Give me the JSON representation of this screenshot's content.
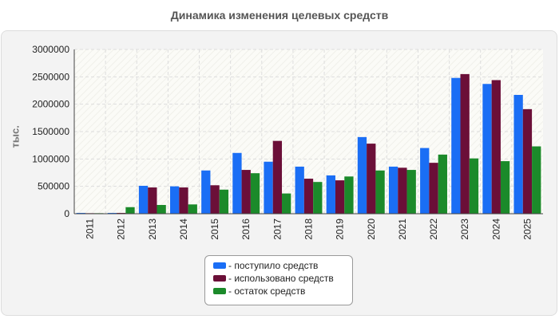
{
  "colors": {
    "received": "#1a6ef5",
    "used": "#6b0f38",
    "remainder": "#1b8a2a"
  },
  "chart_data": {
    "type": "bar",
    "title": "Динамика изменения целевых средств",
    "ylabel": "тыс.",
    "xlabel": "",
    "ylim": [
      0,
      3000000
    ],
    "yticks": [
      "0",
      "500000",
      "1000000",
      "1500000",
      "2000000",
      "2500000",
      "3000000"
    ],
    "categories": [
      "2011",
      "2012",
      "2013",
      "2014",
      "2015",
      "2016",
      "2017",
      "2018",
      "2019",
      "2020",
      "2021",
      "2022",
      "2023",
      "2024",
      "2025"
    ],
    "series": [
      {
        "name": "- поступило средств",
        "color": "#1a6ef5",
        "values": [
          15000,
          15000,
          510000,
          500000,
          790000,
          1110000,
          950000,
          860000,
          700000,
          1400000,
          860000,
          1200000,
          2480000,
          2370000,
          2170000
        ]
      },
      {
        "name": "- использовано средств",
        "color": "#6b0f38",
        "values": [
          10000,
          15000,
          480000,
          480000,
          520000,
          800000,
          1330000,
          640000,
          610000,
          1280000,
          840000,
          930000,
          2550000,
          2440000,
          1910000
        ]
      },
      {
        "name": "- остаток средств",
        "color": "#1b8a2a",
        "values": [
          10000,
          120000,
          160000,
          170000,
          440000,
          740000,
          370000,
          580000,
          680000,
          790000,
          800000,
          1080000,
          1010000,
          960000,
          1230000
        ]
      }
    ],
    "grid": true,
    "legend_position": "bottom-center"
  }
}
